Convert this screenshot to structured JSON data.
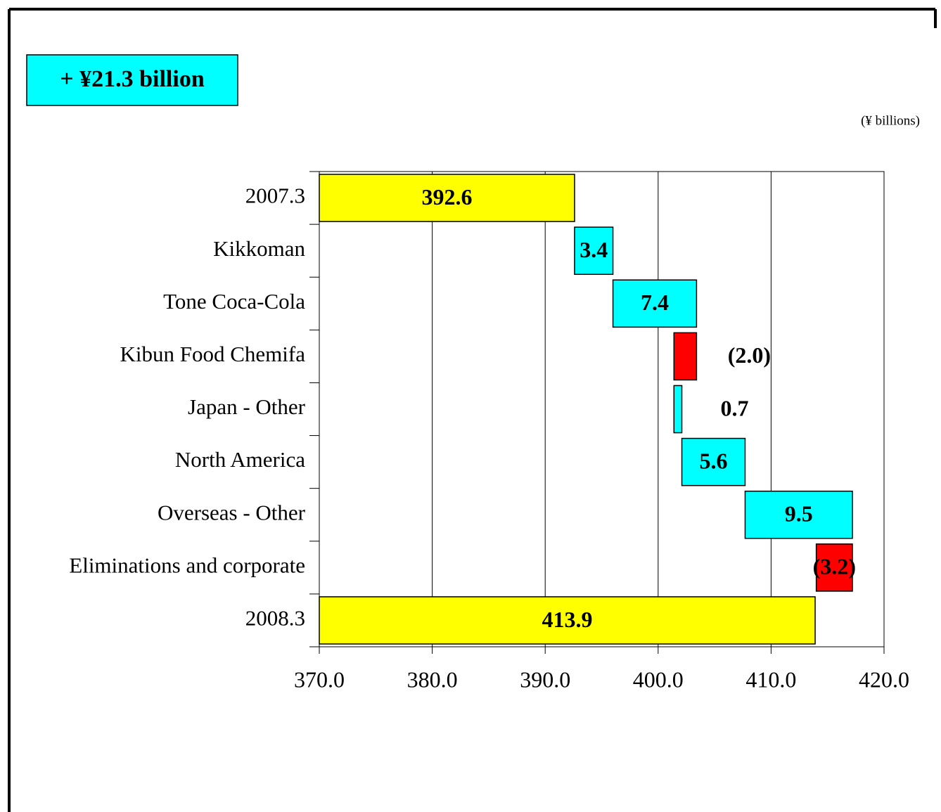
{
  "chart_data": {
    "type": "waterfall",
    "annotation": "+ ¥21.3 billion",
    "unit_label": "(¥ billions)",
    "categories": [
      "2007.3",
      "Kikkoman",
      "Tone Coca-Cola",
      "Kibun Food Chemifa",
      "Japan - Other",
      "North America",
      "Overseas - Other",
      "Eliminations and corporate",
      "2008.3"
    ],
    "values": [
      392.6,
      3.4,
      7.4,
      -2.0,
      0.7,
      5.6,
      9.5,
      -3.2,
      413.9
    ],
    "value_labels": [
      "392.6",
      "3.4",
      "7.4",
      "(2.0)",
      "0.7",
      "5.6",
      "9.5",
      "(3.2)",
      "413.9"
    ],
    "colors": [
      "#ffff00",
      "#00ffff",
      "#00ffff",
      "#ff0000",
      "#00ffff",
      "#00ffff",
      "#00ffff",
      "#ff0000",
      "#ffff00"
    ],
    "xlim": [
      370,
      420
    ],
    "xticks": [
      {
        "value": 370,
        "label": "370.0"
      },
      {
        "value": 380,
        "label": "380.0"
      },
      {
        "value": 390,
        "label": "390.0"
      },
      {
        "value": 400,
        "label": "400.0"
      },
      {
        "value": 410,
        "label": "410.0"
      },
      {
        "value": 420,
        "label": "420.0"
      }
    ],
    "grid": true
  }
}
